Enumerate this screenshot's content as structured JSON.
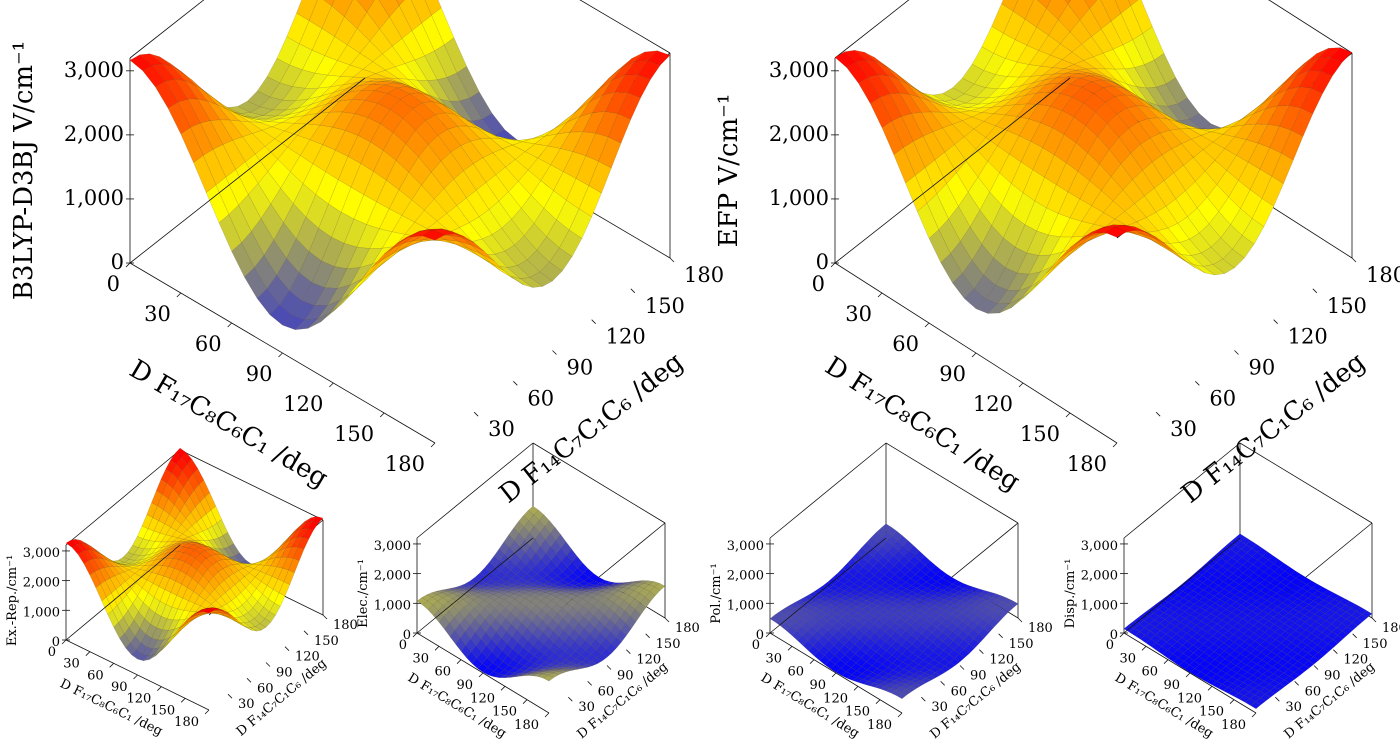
{
  "chart_data": [
    {
      "type": "surface",
      "zlabel": "B3LYP-D3BJ  V/cm⁻¹",
      "xlabel": "D F₁₇C₈C₆C₁ /deg",
      "ylabel": "D F₁₄C₇C₁C₆ /deg",
      "x_ticks": [
        "0",
        "30",
        "60",
        "90",
        "120",
        "150",
        "180"
      ],
      "y_ticks": [
        "30",
        "60",
        "90",
        "120",
        "150",
        "180"
      ],
      "z_ticks": [
        "0",
        "1,000",
        "2,000",
        "3,000"
      ],
      "xlim": [
        0,
        180
      ],
      "ylim": [
        0,
        180
      ],
      "zlim": [
        0,
        3200
      ],
      "colormap": [
        "#0000ff",
        "#ffff00",
        "#ff0000"
      ],
      "model": {
        "base": 1800,
        "amp": 1300,
        "cross": 0
      }
    },
    {
      "type": "surface",
      "zlabel": "EFP  V/cm⁻¹",
      "xlabel": "D F₁₇C₈C₆C₁ /deg",
      "ylabel": "D F₁₄C₇C₁C₆ /deg",
      "x_ticks": [
        "0",
        "30",
        "60",
        "90",
        "120",
        "150",
        "180"
      ],
      "y_ticks": [
        "30",
        "60",
        "90",
        "120",
        "150",
        "180"
      ],
      "z_ticks": [
        "0",
        "1,000",
        "2,000",
        "3,000"
      ],
      "xlim": [
        0,
        180
      ],
      "ylim": [
        0,
        180
      ],
      "zlim": [
        0,
        3200
      ],
      "colormap": [
        "#0000ff",
        "#ffff00",
        "#ff0000"
      ],
      "model": {
        "base": 1950,
        "amp": 1200,
        "cross": 0
      }
    },
    {
      "type": "surface",
      "zlabel": "Ex.-Rep./cm⁻¹",
      "xlabel": "D F₁₇C₈C₆C₁ /deg",
      "ylabel": "D F₁₄C₇C₁C₆ /deg",
      "x_ticks": [
        "0",
        "30",
        "60",
        "90",
        "120",
        "150",
        "180"
      ],
      "y_ticks": [
        "30",
        "60",
        "90",
        "120",
        "150",
        "180"
      ],
      "z_ticks": [
        "0",
        "1,000",
        "2,000",
        "3,000"
      ],
      "xlim": [
        0,
        180
      ],
      "ylim": [
        0,
        180
      ],
      "zlim": [
        0,
        3200
      ],
      "colormap": [
        "#0000ff",
        "#ffff00",
        "#ff0000"
      ],
      "model": {
        "base": 1900,
        "amp": 1300,
        "cross": 0
      }
    },
    {
      "type": "surface",
      "zlabel": "Elec./cm⁻¹",
      "xlabel": "D F₁₇C₈C₆C₁ /deg",
      "ylabel": "D F₁₄C₇C₁C₆ /deg",
      "x_ticks": [
        "0",
        "30",
        "60",
        "90",
        "120",
        "150",
        "180"
      ],
      "y_ticks": [
        "30",
        "60",
        "90",
        "120",
        "150",
        "180"
      ],
      "z_ticks": [
        "0",
        "1,000",
        "2,000",
        "3,000"
      ],
      "xlim": [
        0,
        180
      ],
      "ylim": [
        0,
        180
      ],
      "zlim": [
        0,
        3200
      ],
      "colormap": [
        "#0000ff",
        "#ffff00",
        "#ff0000"
      ],
      "model": {
        "base": 550,
        "amp": 500,
        "cross": 300
      }
    },
    {
      "type": "surface",
      "zlabel": "Pol./cm⁻¹",
      "xlabel": "D F₁₇C₈C₆C₁ /deg",
      "ylabel": "D F₁₄C₇C₁C₆ /deg",
      "x_ticks": [
        "0",
        "30",
        "60",
        "90",
        "120",
        "150",
        "180"
      ],
      "y_ticks": [
        "30",
        "60",
        "90",
        "120",
        "150",
        "180"
      ],
      "z_ticks": [
        "0",
        "1,000",
        "2,000",
        "3,000"
      ],
      "xlim": [
        0,
        180
      ],
      "ylim": [
        0,
        180
      ],
      "zlim": [
        0,
        3200
      ],
      "colormap": [
        "#0000ff",
        "#ffff00",
        "#ff0000"
      ],
      "model": {
        "base": 250,
        "amp": 220,
        "cross": 150
      }
    },
    {
      "type": "surface",
      "zlabel": "Disp./cm⁻¹",
      "xlabel": "D F₁₇C₈C₆C₁ /deg",
      "ylabel": "D F₁₄C₇C₁C₆ /deg",
      "x_ticks": [
        "0",
        "30",
        "60",
        "90",
        "120",
        "150",
        "180"
      ],
      "y_ticks": [
        "30",
        "60",
        "90",
        "120",
        "150",
        "180"
      ],
      "z_ticks": [
        "0",
        "1,000",
        "2,000",
        "3,000"
      ],
      "xlim": [
        0,
        180
      ],
      "ylim": [
        0,
        180
      ],
      "zlim": [
        0,
        3200
      ],
      "colormap": [
        "#0000ff",
        "#ffff00",
        "#ff0000"
      ],
      "model": {
        "base": 80,
        "amp": 60,
        "cross": 40
      }
    }
  ]
}
